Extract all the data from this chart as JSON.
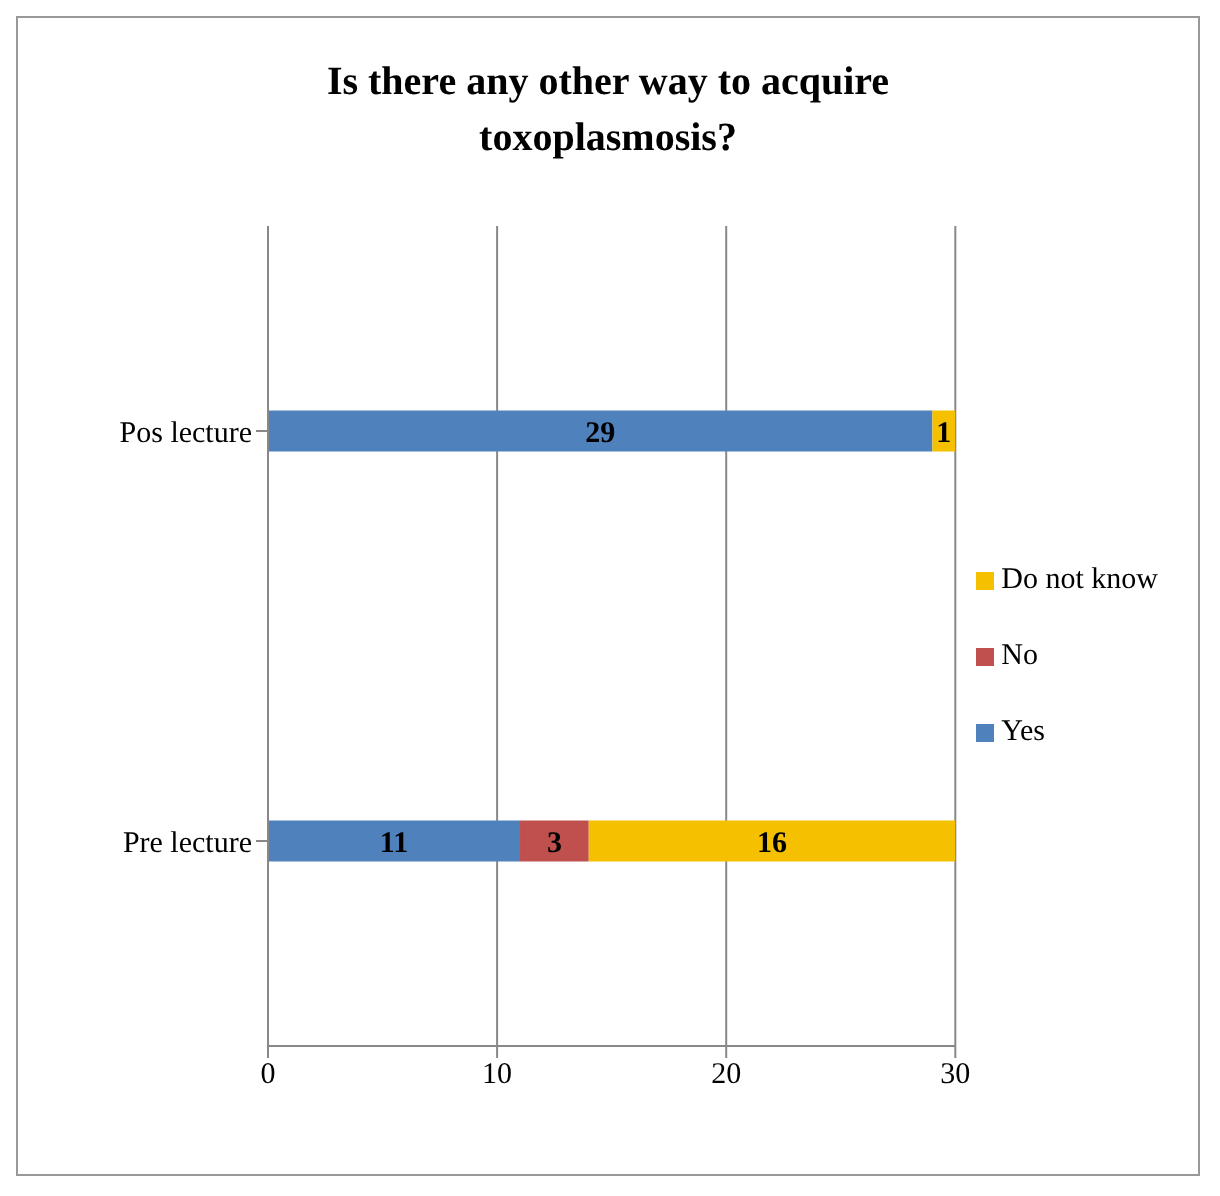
{
  "chart_data": {
    "type": "bar",
    "orientation": "horizontal",
    "stacked": true,
    "title": "Is there any other way to acquire toxoplasmosis?",
    "categories": [
      "Pos lecture",
      "Pre lecture"
    ],
    "series": [
      {
        "name": "Yes",
        "color": "#4f81bd",
        "values": [
          29,
          11
        ],
        "value_labels": [
          "29",
          "11"
        ]
      },
      {
        "name": "No",
        "color": "#c0504d",
        "values": [
          0,
          3
        ],
        "value_labels": [
          null,
          "3"
        ]
      },
      {
        "name": "Do not know",
        "color": "#f5c000",
        "values": [
          1,
          16
        ],
        "value_labels": [
          "1",
          "16"
        ]
      }
    ],
    "xlim": [
      0,
      30
    ],
    "xticks": [
      0,
      10,
      20,
      30
    ],
    "grid": "x",
    "legend": "right"
  }
}
